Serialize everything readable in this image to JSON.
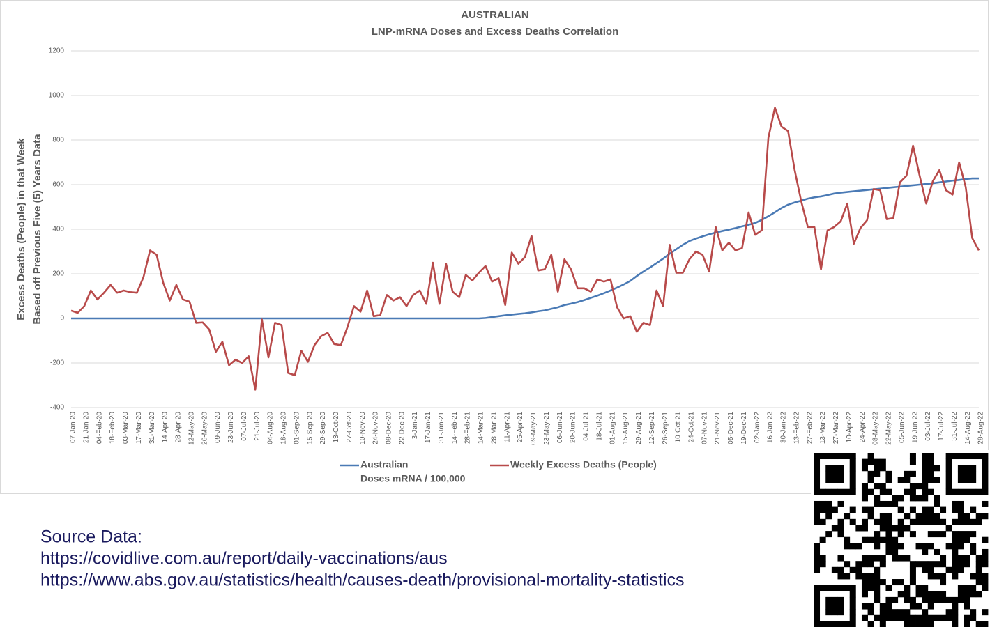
{
  "chart_data": {
    "type": "line",
    "title": "AUSTRALIAN",
    "subtitle": "LNP-mRNA Doses and Excess Deaths Correlation",
    "ylabel": [
      "Excess Deaths (People) in that Week",
      "Based off Previous Five (5) Years Data"
    ],
    "ylim": [
      -400,
      1200
    ],
    "yticks": [
      -400,
      -200,
      0,
      200,
      400,
      600,
      800,
      1000,
      1200
    ],
    "grid": true,
    "categories": [
      "07-Jan-20",
      null,
      "21-Jan-20",
      null,
      "04-Feb-20",
      null,
      "18-Feb-20",
      null,
      "03-Mar-20",
      null,
      "17-Mar-20",
      null,
      "31-Mar-20",
      null,
      "14-Apr-20",
      null,
      "28-Apr-20",
      null,
      "12-May-20",
      null,
      "26-May-20",
      null,
      "09-Jun-20",
      null,
      "23-Jun-20",
      null,
      "07-Jul-20",
      null,
      "21-Jul-20",
      null,
      "04-Aug-20",
      null,
      "18-Aug-20",
      null,
      "01-Sep-20",
      null,
      "15-Sep-20",
      null,
      "29-Sep-20",
      null,
      "13-Oct-20",
      null,
      "27-Oct-20",
      null,
      "10-Nov-20",
      null,
      "24-Nov-20",
      null,
      "08-Dec-20",
      null,
      "22-Dec-20",
      null,
      "3-Jan-21",
      null,
      "17-Jan-21",
      null,
      "31-Jan-21",
      null,
      "14-Feb-21",
      null,
      "28-Feb-21",
      null,
      "14-Mar-21",
      null,
      "28-Mar-21",
      null,
      "11-Apr-21",
      null,
      "25-Apr-21",
      null,
      "09-May-21",
      null,
      "23-May-21",
      null,
      "06-Jun-21",
      null,
      "20-Jun-21",
      null,
      "04-Jul-21",
      null,
      "18-Jul-21",
      null,
      "01-Aug-21",
      null,
      "15-Aug-21",
      null,
      "29-Aug-21",
      null,
      "12-Sep-21",
      null,
      "26-Sep-21",
      null,
      "10-Oct-21",
      null,
      "24-Oct-21",
      null,
      "07-Nov-21",
      null,
      "21-Nov-21",
      null,
      "05-Dec-21",
      null,
      "19-Dec-21",
      null,
      "02-Jan-22",
      null,
      "16-Jan-22",
      null,
      "30-Jan-22",
      null,
      "13-Feb-22",
      null,
      "27-Feb-22",
      null,
      "13-Mar-22",
      null,
      "27-Mar-22",
      null,
      "10-Apr-22",
      null,
      "24-Apr-22",
      null,
      "08-May-22",
      null,
      "22-May-22",
      null,
      "05-Jun-22",
      null,
      "19-Jun-22",
      null,
      "03-Jul-22",
      null,
      "17-Jul-22",
      null,
      "31-Jul-22",
      null,
      "14-Aug-22",
      null,
      "28-Aug-22"
    ],
    "series": [
      {
        "name": [
          "Australian",
          "Doses mRNA / 100,000"
        ],
        "color": "#4a7ab5",
        "values": [
          0,
          0,
          0,
          0,
          0,
          0,
          0,
          0,
          0,
          0,
          0,
          0,
          0,
          0,
          0,
          0,
          0,
          0,
          0,
          0,
          0,
          0,
          0,
          0,
          0,
          0,
          0,
          0,
          0,
          0,
          0,
          0,
          0,
          0,
          0,
          0,
          0,
          0,
          0,
          0,
          0,
          0,
          0,
          0,
          0,
          0,
          0,
          0,
          0,
          0,
          0,
          0,
          0,
          0,
          0,
          0,
          0,
          0,
          0,
          0,
          0,
          0,
          0,
          2,
          6,
          10,
          14,
          17,
          20,
          23,
          27,
          32,
          36,
          43,
          50,
          60,
          66,
          73,
          82,
          92,
          102,
          113,
          125,
          138,
          152,
          168,
          190,
          210,
          228,
          248,
          268,
          290,
          310,
          330,
          347,
          358,
          368,
          377,
          385,
          392,
          398,
          405,
          413,
          420,
          428,
          442,
          458,
          476,
          495,
          510,
          520,
          528,
          537,
          543,
          547,
          553,
          560,
          564,
          567,
          570,
          573,
          576,
          579,
          582,
          585,
          588,
          591,
          594,
          597,
          600,
          603,
          606,
          610,
          614,
          618,
          621,
          625,
          628,
          628
        ]
      },
      {
        "name": [
          "Weekly Excess Deaths (People)"
        ],
        "color": "#b84a4a",
        "values": [
          35,
          25,
          55,
          125,
          85,
          115,
          150,
          115,
          125,
          118,
          115,
          185,
          305,
          285,
          160,
          80,
          150,
          85,
          75,
          -20,
          -18,
          -50,
          -150,
          -105,
          -210,
          -185,
          -200,
          -170,
          -320,
          -5,
          -175,
          -20,
          -30,
          -245,
          -255,
          -145,
          -195,
          -120,
          -80,
          -65,
          -115,
          -120,
          -40,
          55,
          30,
          125,
          10,
          15,
          105,
          80,
          95,
          55,
          105,
          125,
          65,
          250,
          65,
          245,
          120,
          95,
          195,
          170,
          205,
          235,
          165,
          180,
          60,
          295,
          245,
          275,
          370,
          215,
          220,
          285,
          120,
          265,
          220,
          135,
          135,
          120,
          175,
          165,
          175,
          50,
          0,
          10,
          -60,
          -20,
          -30,
          125,
          55,
          330,
          205,
          205,
          265,
          300,
          285,
          210,
          410,
          305,
          340,
          305,
          315,
          475,
          375,
          395,
          810,
          945,
          860,
          840,
          665,
          525,
          410,
          410,
          220,
          395,
          410,
          435,
          515,
          335,
          405,
          440,
          580,
          575,
          445,
          450,
          610,
          640,
          775,
          640,
          515,
          615,
          665,
          575,
          555,
          700,
          590,
          360,
          305
        ]
      }
    ]
  },
  "source": [
    "Source Data:",
    "https://covidlive.com.au/report/daily-vaccinations/aus",
    "https://www.abs.gov.au/statistics/health/causes-death/provisional-mortality-statistics"
  ]
}
